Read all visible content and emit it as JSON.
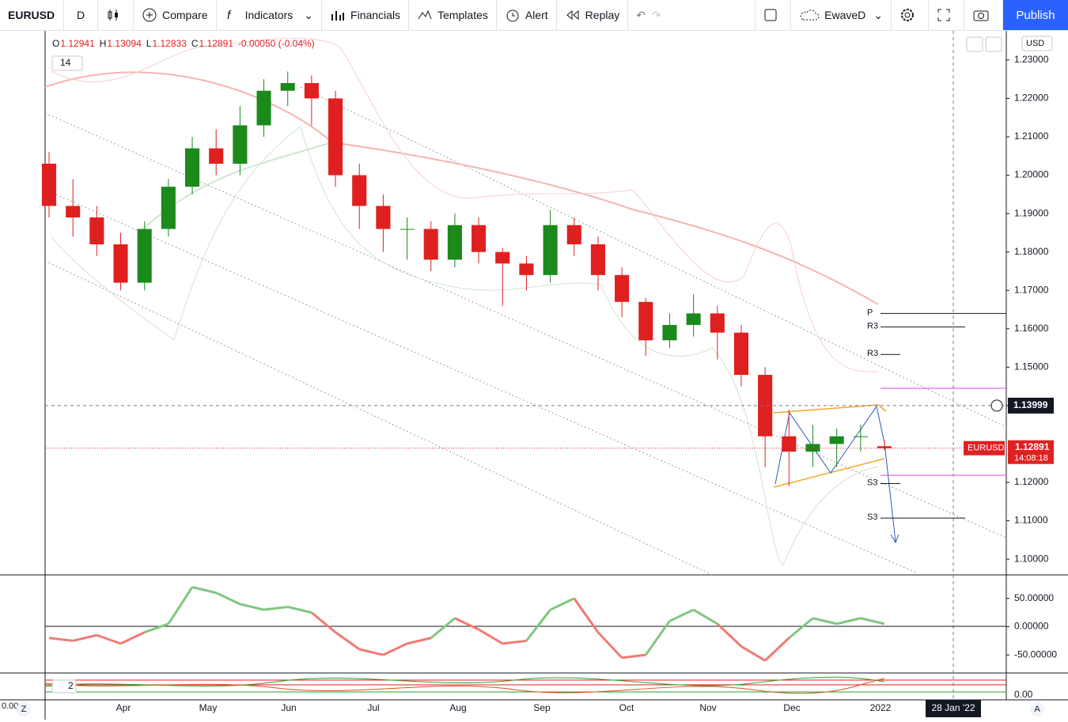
{
  "toolbar": {
    "symbol": "EURUSD",
    "interval": "D",
    "compare": "Compare",
    "indicators": "Indicators",
    "financials": "Financials",
    "templates": "Templates",
    "alert": "Alert",
    "replay": "Replay",
    "layout": "EwaveD",
    "publish": "Publish"
  },
  "legend": {
    "items": [
      {
        "key": "O",
        "value": "1.12941"
      },
      {
        "key": "H",
        "value": "1.13094"
      },
      {
        "key": "L",
        "value": "1.12833"
      },
      {
        "key": "C",
        "value": "1.12891"
      }
    ],
    "change": "-0.00050 (-0.04%)",
    "indicator_count": "14",
    "pane3_count": "2"
  },
  "currency": "USD",
  "price_pane": {
    "type": "candlestick",
    "open": [
      1.203,
      1.192,
      1.189,
      1.182,
      1.172,
      1.186,
      1.197,
      1.207,
      1.203,
      1.213,
      1.222,
      1.224,
      1.22,
      1.2,
      1.192,
      1.186,
      1.186,
      1.178,
      1.187,
      1.18,
      1.177,
      1.174,
      1.187,
      1.182,
      1.174,
      1.167,
      1.157,
      1.161,
      1.164,
      1.159,
      1.148,
      1.132,
      1.128,
      1.13,
      1.132,
      1.12941
    ],
    "high": [
      1.206,
      1.199,
      1.192,
      1.185,
      1.188,
      1.199,
      1.21,
      1.212,
      1.218,
      1.225,
      1.227,
      1.226,
      1.222,
      1.203,
      1.195,
      1.189,
      1.188,
      1.19,
      1.189,
      1.181,
      1.179,
      1.191,
      1.189,
      1.184,
      1.176,
      1.168,
      1.164,
      1.169,
      1.166,
      1.161,
      1.15,
      1.139,
      1.135,
      1.134,
      1.135,
      1.13094
    ],
    "low": [
      1.189,
      1.184,
      1.179,
      1.17,
      1.17,
      1.184,
      1.195,
      1.2,
      1.2,
      1.21,
      1.218,
      1.213,
      1.197,
      1.186,
      1.18,
      1.178,
      1.175,
      1.176,
      1.177,
      1.166,
      1.17,
      1.172,
      1.179,
      1.17,
      1.163,
      1.153,
      1.155,
      1.158,
      1.152,
      1.145,
      1.124,
      1.119,
      1.124,
      1.124,
      1.128,
      1.12833
    ],
    "close": [
      1.192,
      1.189,
      1.182,
      1.172,
      1.186,
      1.197,
      1.207,
      1.203,
      1.213,
      1.222,
      1.224,
      1.22,
      1.2,
      1.192,
      1.186,
      1.186,
      1.178,
      1.187,
      1.18,
      1.177,
      1.174,
      1.187,
      1.182,
      1.174,
      1.167,
      1.157,
      1.161,
      1.164,
      1.159,
      1.148,
      1.132,
      1.128,
      1.13,
      1.132,
      1.132,
      1.12891
    ],
    "up_color": "#26a69a",
    "up_fill": "#1b8a1b",
    "down_color": "#e02020",
    "ylim": [
      1.0959,
      1.2376
    ],
    "yticks": [
      {
        "value": 1.23,
        "label": "1.23000"
      },
      {
        "value": 1.22,
        "label": "1.22000"
      },
      {
        "value": 1.21,
        "label": "1.21000"
      },
      {
        "value": 1.2,
        "label": "1.20000"
      },
      {
        "value": 1.19,
        "label": "1.19000"
      },
      {
        "value": 1.18,
        "label": "1.18000"
      },
      {
        "value": 1.17,
        "label": "1.17000"
      },
      {
        "value": 1.16,
        "label": "1.16000"
      },
      {
        "value": 1.15,
        "label": "1.15000"
      },
      {
        "value": 1.14,
        "label": "1.14000"
      },
      {
        "value": 1.12,
        "label": "1.12000"
      },
      {
        "value": 1.11,
        "label": "1.11000"
      },
      {
        "value": 1.1,
        "label": "1.10000"
      }
    ],
    "levels": [
      {
        "name": "P",
        "value": 1.164
      },
      {
        "name": "R3",
        "value": 1.1605
      },
      {
        "name": "R3",
        "value": 1.1533
      },
      {
        "name": "S3",
        "value": 1.1197
      },
      {
        "name": "S3",
        "value": 1.1107
      }
    ],
    "crosshair": {
      "value": 1.13999,
      "label": "1.13999"
    },
    "last": {
      "name": "EURUSD",
      "value": 1.12891,
      "label": "1.12891",
      "countdown": "14:08:18"
    }
  },
  "oscillator_pane": {
    "type": "line",
    "values": [
      -20,
      -25,
      -15,
      -30,
      -10,
      5,
      70,
      60,
      40,
      30,
      35,
      25,
      -10,
      -40,
      -50,
      -30,
      -20,
      15,
      -5,
      -30,
      -25,
      30,
      50,
      -10,
      -55,
      -50,
      10,
      30,
      5,
      -35,
      -60,
      -20,
      15,
      5,
      15,
      5
    ],
    "positive_color": "#7fc77f",
    "negative_color": "#f07b72",
    "ylim": [
      -80.6,
      90.3
    ],
    "yticks": [
      {
        "value": 50,
        "label": "50.00000"
      },
      {
        "value": 0,
        "label": "0.00000"
      },
      {
        "value": -50,
        "label": "-50.00000"
      }
    ]
  },
  "pane3": {
    "left_label": "0.00",
    "right_label": "0.00"
  },
  "time_axis": {
    "labels": [
      "Apr",
      "May",
      "Jun",
      "Jul",
      "Aug",
      "Sep",
      "Oct",
      "Nov",
      "Dec",
      "2022"
    ],
    "crosshair_label": "28 Jan '22",
    "left_button": "Z",
    "right_button": "A"
  }
}
